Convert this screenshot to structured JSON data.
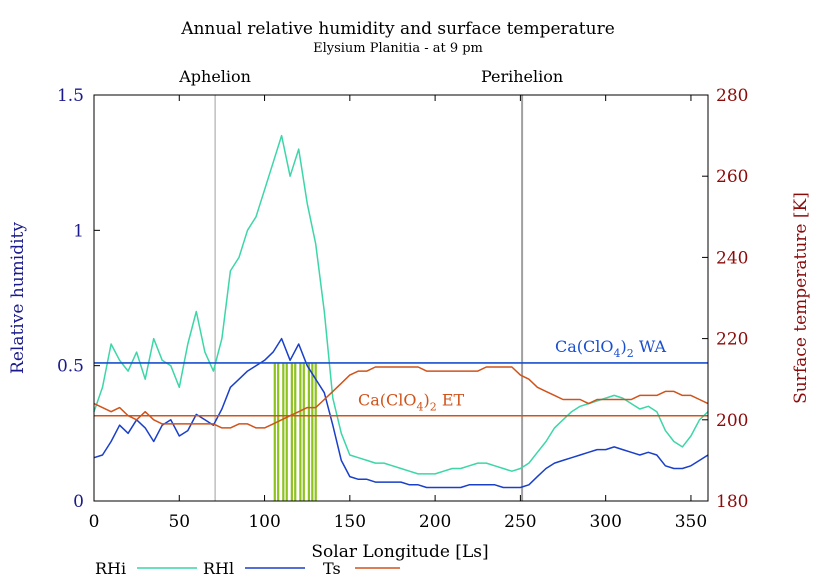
{
  "chart_data": {
    "type": "line",
    "title": "Annual relative humidity and surface temperature",
    "subtitle": "Elysium Planitia - at 9 pm",
    "xlabel": "Solar Longitude [Ls]",
    "ylabel_left": "Relative humidity",
    "ylabel_right": "Surface temperature [K]",
    "xlim": [
      0,
      360
    ],
    "ylim_left": [
      0,
      1.5
    ],
    "ylim_right": [
      180,
      280
    ],
    "x_ticks": [
      "0",
      "50",
      "100",
      "150",
      "200",
      "250",
      "300",
      "350"
    ],
    "x_tick_values": [
      0,
      50,
      100,
      150,
      200,
      250,
      300,
      350
    ],
    "y_left_ticks": [
      "0",
      "0.5",
      "1",
      "1.5"
    ],
    "y_left_tick_values": [
      0,
      0.5,
      1,
      1.5
    ],
    "y_right_ticks": [
      "180",
      "200",
      "220",
      "240",
      "260",
      "280"
    ],
    "y_right_tick_values": [
      180,
      200,
      220,
      240,
      260,
      280
    ],
    "markers": [
      {
        "label": "Aphelion",
        "x": 71
      },
      {
        "label": "Perihelion",
        "x": 251
      }
    ],
    "thresholds": [
      {
        "label_base": "Ca(ClO",
        "label_sub1": "4",
        "label_mid": ")",
        "label_sub2": "2",
        "label_tail": " WA",
        "value": 0.51,
        "axis": "left",
        "color": "#1a4fd0"
      },
      {
        "label_base": "Ca(ClO",
        "label_sub1": "4",
        "label_mid": ")",
        "label_sub2": "2",
        "label_tail": " ET",
        "value": 201,
        "axis": "right",
        "color": "#d0531a"
      }
    ],
    "highlight_bars": {
      "x": [
        106,
        108,
        111,
        113,
        116,
        118,
        121,
        123,
        126,
        128,
        130
      ],
      "height": 0.51,
      "color": "#8dc21f"
    },
    "series": [
      {
        "name": "RHi",
        "axis": "left",
        "color": "#3cd6a8",
        "x": [
          0,
          5,
          10,
          15,
          20,
          25,
          30,
          35,
          40,
          45,
          50,
          55,
          60,
          65,
          70,
          75,
          80,
          85,
          90,
          95,
          100,
          105,
          110,
          115,
          120,
          125,
          130,
          135,
          140,
          145,
          150,
          155,
          160,
          165,
          170,
          175,
          180,
          185,
          190,
          195,
          200,
          205,
          210,
          215,
          220,
          225,
          230,
          235,
          240,
          245,
          250,
          255,
          260,
          265,
          270,
          275,
          280,
          285,
          290,
          295,
          300,
          305,
          310,
          315,
          320,
          325,
          330,
          335,
          340,
          345,
          350,
          355,
          360
        ],
        "values": [
          0.33,
          0.42,
          0.58,
          0.52,
          0.48,
          0.55,
          0.45,
          0.6,
          0.52,
          0.5,
          0.42,
          0.58,
          0.7,
          0.55,
          0.48,
          0.6,
          0.85,
          0.9,
          1.0,
          1.05,
          1.15,
          1.25,
          1.35,
          1.2,
          1.3,
          1.1,
          0.95,
          0.7,
          0.38,
          0.25,
          0.17,
          0.16,
          0.15,
          0.14,
          0.14,
          0.13,
          0.12,
          0.11,
          0.1,
          0.1,
          0.1,
          0.11,
          0.12,
          0.12,
          0.13,
          0.14,
          0.14,
          0.13,
          0.12,
          0.11,
          0.12,
          0.14,
          0.18,
          0.22,
          0.27,
          0.3,
          0.33,
          0.35,
          0.36,
          0.37,
          0.38,
          0.39,
          0.38,
          0.36,
          0.34,
          0.35,
          0.33,
          0.26,
          0.22,
          0.2,
          0.24,
          0.3,
          0.33
        ]
      },
      {
        "name": "RHl",
        "axis": "left",
        "color": "#1a3fc8",
        "x": [
          0,
          5,
          10,
          15,
          20,
          25,
          30,
          35,
          40,
          45,
          50,
          55,
          60,
          65,
          70,
          75,
          80,
          85,
          90,
          95,
          100,
          105,
          110,
          115,
          120,
          125,
          130,
          135,
          140,
          145,
          150,
          155,
          160,
          165,
          170,
          175,
          180,
          185,
          190,
          195,
          200,
          205,
          210,
          215,
          220,
          225,
          230,
          235,
          240,
          245,
          250,
          255,
          260,
          265,
          270,
          275,
          280,
          285,
          290,
          295,
          300,
          305,
          310,
          315,
          320,
          325,
          330,
          335,
          340,
          345,
          350,
          355,
          360
        ],
        "values": [
          0.16,
          0.17,
          0.22,
          0.28,
          0.25,
          0.3,
          0.27,
          0.22,
          0.28,
          0.3,
          0.24,
          0.26,
          0.32,
          0.3,
          0.28,
          0.34,
          0.42,
          0.45,
          0.48,
          0.5,
          0.52,
          0.55,
          0.6,
          0.52,
          0.58,
          0.5,
          0.45,
          0.4,
          0.28,
          0.15,
          0.09,
          0.08,
          0.08,
          0.07,
          0.07,
          0.07,
          0.07,
          0.06,
          0.06,
          0.05,
          0.05,
          0.05,
          0.05,
          0.05,
          0.06,
          0.06,
          0.06,
          0.06,
          0.05,
          0.05,
          0.05,
          0.06,
          0.09,
          0.12,
          0.14,
          0.15,
          0.16,
          0.17,
          0.18,
          0.19,
          0.19,
          0.2,
          0.19,
          0.18,
          0.17,
          0.18,
          0.17,
          0.13,
          0.12,
          0.12,
          0.13,
          0.15,
          0.17
        ]
      },
      {
        "name": "Ts",
        "axis": "right",
        "color": "#d0531a",
        "x": [
          0,
          5,
          10,
          15,
          20,
          25,
          30,
          35,
          40,
          45,
          50,
          55,
          60,
          65,
          70,
          75,
          80,
          85,
          90,
          95,
          100,
          105,
          110,
          115,
          120,
          125,
          130,
          135,
          140,
          145,
          150,
          155,
          160,
          165,
          170,
          175,
          180,
          185,
          190,
          195,
          200,
          205,
          210,
          215,
          220,
          225,
          230,
          235,
          240,
          245,
          250,
          255,
          260,
          265,
          270,
          275,
          280,
          285,
          290,
          295,
          300,
          305,
          310,
          315,
          320,
          325,
          330,
          335,
          340,
          345,
          350,
          355,
          360
        ],
        "values": [
          204,
          203,
          202,
          203,
          201,
          200,
          202,
          200,
          199,
          199,
          199,
          199,
          199,
          199,
          199,
          198,
          198,
          199,
          199,
          198,
          198,
          199,
          200,
          201,
          202,
          203,
          203,
          205,
          207,
          209,
          211,
          212,
          212,
          213,
          213,
          213,
          213,
          213,
          213,
          212,
          212,
          212,
          212,
          212,
          212,
          212,
          213,
          213,
          213,
          213,
          211,
          210,
          208,
          207,
          206,
          205,
          205,
          205,
          204,
          205,
          205,
          205,
          205,
          205,
          206,
          206,
          206,
          207,
          207,
          206,
          206,
          205,
          204
        ]
      }
    ],
    "legend": [
      {
        "label": "RHi",
        "color": "#3cd6a8"
      },
      {
        "label": "RHl",
        "color": "#1a3fc8"
      },
      {
        "label": "Ts",
        "color": "#d0531a"
      }
    ],
    "colors": {
      "left_axis": "#1a1a8c",
      "right_axis": "#8b0a0a",
      "marker_line": "#a0a0a0"
    }
  }
}
